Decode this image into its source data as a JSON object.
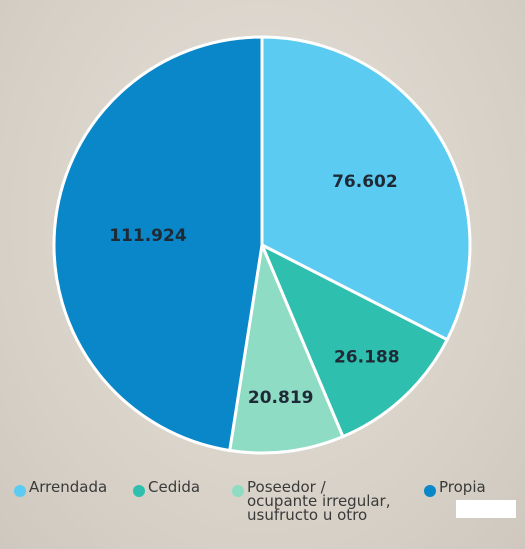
{
  "chart_data": {
    "type": "pie",
    "title": "",
    "slices": [
      {
        "label": "Arrendada",
        "value": 76602,
        "value_label": "76.602",
        "color": "#5ccbf1"
      },
      {
        "label": "Cedida",
        "value": 26188,
        "value_label": "26.188",
        "color": "#2fbfaf"
      },
      {
        "label": "Poseedor / ocupante irregular, usufructo u otro",
        "value": 20819,
        "value_label": "20.819",
        "color": "#8fdcc4"
      },
      {
        "label": "Propia",
        "value": 111924,
        "value_label": "111.924",
        "color": "#0a87c8"
      }
    ],
    "legend": {
      "placement": "bottom",
      "items": [
        {
          "label": "Arrendada",
          "color": "#5ccbf1",
          "icon": "circle-icon"
        },
        {
          "label": "Cedida",
          "color": "#2fbfaf",
          "icon": "circle-icon"
        },
        {
          "label": "Poseedor /\nocupante irregular,\nusufructo u otro",
          "color": "#8fdcc4",
          "icon": "circle-icon"
        },
        {
          "label": "Propia",
          "color": "#0a87c8",
          "icon": "circle-icon"
        }
      ]
    },
    "border_color": "#ffffff"
  }
}
